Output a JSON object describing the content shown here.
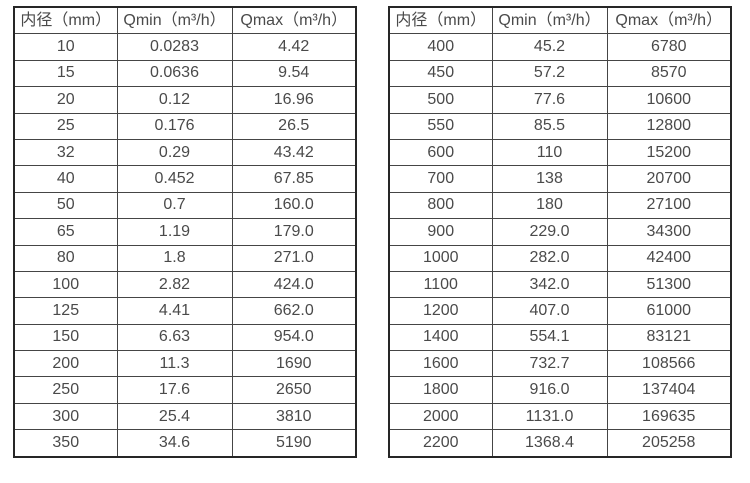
{
  "page": {
    "background": "#ffffff"
  },
  "colors": {
    "text": "#4a4a4a",
    "outer_border": "#262626",
    "inner_border": "#454545",
    "background": "#ffffff"
  },
  "chart_data": [
    {
      "type": "table",
      "title": "",
      "columns": [
        "内径（mm）",
        "Qmin（m³/h）",
        "Qmax（m³/h）"
      ],
      "rows": [
        [
          "10",
          "0.0283",
          "4.42"
        ],
        [
          "15",
          "0.0636",
          "9.54"
        ],
        [
          "20",
          "0.12",
          "16.96"
        ],
        [
          "25",
          "0.176",
          "26.5"
        ],
        [
          "32",
          "0.29",
          "43.42"
        ],
        [
          "40",
          "0.452",
          "67.85"
        ],
        [
          "50",
          "0.7",
          "160.0"
        ],
        [
          "65",
          "1.19",
          "179.0"
        ],
        [
          "80",
          "1.8",
          "271.0"
        ],
        [
          "100",
          "2.82",
          "424.0"
        ],
        [
          "125",
          "4.41",
          "662.0"
        ],
        [
          "150",
          "6.63",
          "954.0"
        ],
        [
          "200",
          "11.3",
          "1690"
        ],
        [
          "250",
          "17.6",
          "2650"
        ],
        [
          "300",
          "25.4",
          "3810"
        ],
        [
          "350",
          "34.6",
          "5190"
        ]
      ]
    },
    {
      "type": "table",
      "title": "",
      "columns": [
        "内径（mm）",
        "Qmin（m³/h）",
        "Qmax（m³/h）"
      ],
      "rows": [
        [
          "400",
          "45.2",
          "6780"
        ],
        [
          "450",
          "57.2",
          "8570"
        ],
        [
          "500",
          "77.6",
          "10600"
        ],
        [
          "550",
          "85.5",
          "12800"
        ],
        [
          "600",
          "110",
          "15200"
        ],
        [
          "700",
          "138",
          "20700"
        ],
        [
          "800",
          "180",
          "27100"
        ],
        [
          "900",
          "229.0",
          "34300"
        ],
        [
          "1000",
          "282.0",
          "42400"
        ],
        [
          "1100",
          "342.0",
          "51300"
        ],
        [
          "1200",
          "407.0",
          "61000"
        ],
        [
          "1400",
          "554.1",
          "83121"
        ],
        [
          "1600",
          "732.7",
          "108566"
        ],
        [
          "1800",
          "916.0",
          "137404"
        ],
        [
          "2000",
          "1131.0",
          "169635"
        ],
        [
          "2200",
          "1368.4",
          "205258"
        ]
      ]
    }
  ]
}
